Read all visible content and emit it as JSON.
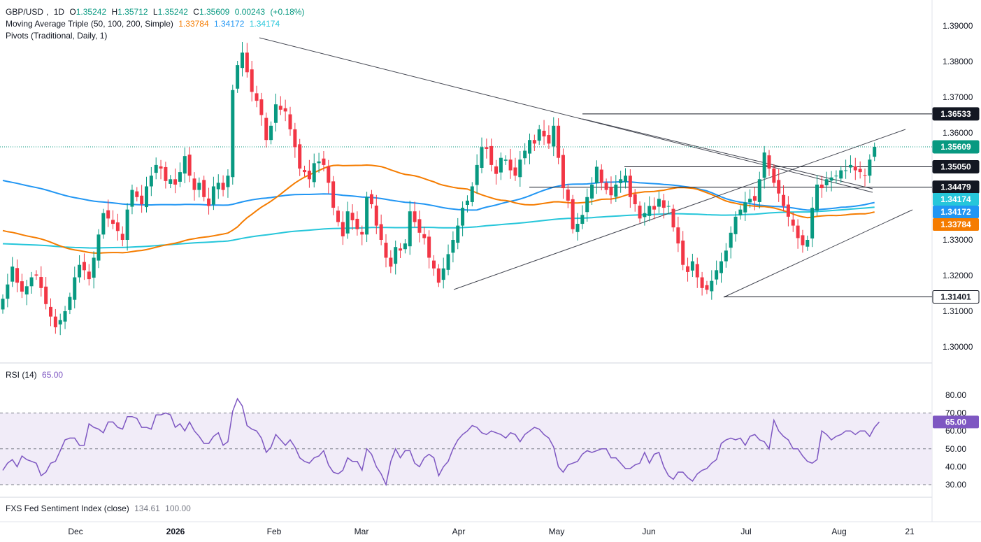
{
  "header": {
    "symbol": "GBP/USD",
    "interval": "1D",
    "o_label": "O",
    "o": "1.35242",
    "h_label": "H",
    "h": "1.35712",
    "l_label": "L",
    "l": "1.35242",
    "c_label": "C",
    "c": "1.35609",
    "change": "0.00243",
    "change_pct": "(+0.18%)"
  },
  "ma_legend": {
    "label": "Moving Average Triple (50, 100, 200, Simple)",
    "ma50": "1.33784",
    "ma100": "1.34172",
    "ma200": "1.34174"
  },
  "pivots_legend": {
    "label": "Pivots (Traditional, Daily, 1)"
  },
  "rsi_legend": {
    "label": "RSI (14)",
    "value": "65.00"
  },
  "fxs_legend": {
    "label": "FXS Fed Sentiment Index (close)",
    "value1": "134.61",
    "value2": "100.00"
  },
  "colors": {
    "up": "#089981",
    "down": "#f23645",
    "ma50": "#f57c00",
    "ma100": "#2196f3",
    "ma200": "#26c6da",
    "rsi": "#7e57c2",
    "rsi_band": "#ede7f6"
  },
  "chart_data": [
    {
      "type": "candlestick",
      "title": "GBP/USD 1D",
      "x_ticks": [
        "Dec",
        "2026",
        "Feb",
        "Mar",
        "Apr",
        "May",
        "Jun",
        "Jul",
        "Aug",
        "21"
      ],
      "y_ticks": [
        "1.39000",
        "1.38000",
        "1.37000",
        "1.36000",
        "1.35000",
        "1.34000",
        "1.33000",
        "1.32000",
        "1.31000",
        "1.30000"
      ],
      "ylim": [
        1.2965,
        1.3935
      ],
      "price_labels": {
        "pivot_high": "1.36533",
        "last": "1.35609",
        "pivot_mid": "1.35050",
        "pivot_low2": "1.34479",
        "ma200": "1.34174",
        "ma100": "1.34172",
        "ma50": "1.33784",
        "pivot_low": "1.31401"
      },
      "horizontal_levels": [
        1.36533,
        1.3505,
        1.34479,
        1.31401
      ],
      "series_close": [
        1.3135,
        1.3175,
        1.3225,
        1.318,
        1.3155,
        1.317,
        1.3195,
        1.32,
        1.3165,
        1.312,
        1.3085,
        1.3055,
        1.3075,
        1.31,
        1.314,
        1.3195,
        1.323,
        1.3215,
        1.319,
        1.325,
        1.3315,
        1.3375,
        1.336,
        1.3345,
        1.3325,
        1.33,
        1.3385,
        1.344,
        1.342,
        1.34,
        1.345,
        1.348,
        1.351,
        1.35,
        1.3465,
        1.347,
        1.3455,
        1.349,
        1.3535,
        1.348,
        1.344,
        1.346,
        1.342,
        1.3395,
        1.345,
        1.346,
        1.344,
        1.348,
        1.372,
        1.379,
        1.3825,
        1.377,
        1.3715,
        1.369,
        1.365,
        1.358,
        1.362,
        1.368,
        1.3665,
        1.366,
        1.361,
        1.356,
        1.35,
        1.349,
        1.347,
        1.3515,
        1.352,
        1.351,
        1.346,
        1.339,
        1.335,
        1.331,
        1.338,
        1.3355,
        1.333,
        1.3315,
        1.342,
        1.34,
        1.334,
        1.33,
        1.325,
        1.3225,
        1.328,
        1.327,
        1.329,
        1.338,
        1.335,
        1.332,
        1.3305,
        1.325,
        1.322,
        1.318,
        1.322,
        1.326,
        1.33,
        1.334,
        1.339,
        1.341,
        1.345,
        1.351,
        1.356,
        1.3555,
        1.351,
        1.3485,
        1.353,
        1.3525,
        1.3495,
        1.348,
        1.3525,
        1.355,
        1.358,
        1.357,
        1.361,
        1.359,
        1.357,
        1.362,
        1.353,
        1.3445,
        1.341,
        1.333,
        1.3345,
        1.337,
        1.342,
        1.3455,
        1.3505,
        1.346,
        1.344,
        1.3425,
        1.3455,
        1.347,
        1.348,
        1.342,
        1.34,
        1.336,
        1.3375,
        1.3395,
        1.3385,
        1.3415,
        1.339,
        1.3395,
        1.3335,
        1.329,
        1.323,
        1.321,
        1.324,
        1.3195,
        1.3165,
        1.316,
        1.3185,
        1.3215,
        1.324,
        1.327,
        1.332,
        1.3365,
        1.3385,
        1.3405,
        1.3415,
        1.341,
        1.347,
        1.3545,
        1.35,
        1.346,
        1.343,
        1.3395,
        1.3365,
        1.334,
        1.3305,
        1.3285,
        1.33,
        1.339,
        1.3455,
        1.3445,
        1.347,
        1.3475,
        1.348,
        1.3495,
        1.3495,
        1.351,
        1.3495,
        1.349,
        1.348,
        1.3525,
        1.35609
      ]
    },
    {
      "type": "line",
      "title": "RSI (14)",
      "y_ticks": [
        "80.00",
        "70.00",
        "60.00",
        "50.00",
        "40.00",
        "30.00"
      ],
      "ylim": [
        27.5,
        83.5
      ],
      "band": [
        30,
        70
      ],
      "last_label": "65.00",
      "values": [
        38,
        42,
        44,
        40,
        46,
        44,
        43,
        42,
        35,
        37,
        42,
        43,
        49,
        55,
        56,
        56,
        52,
        52,
        64,
        62,
        61,
        59,
        65,
        65,
        62,
        61,
        68,
        68,
        67,
        62,
        62,
        61,
        69,
        69,
        70,
        69,
        62,
        64,
        60,
        65,
        60,
        57,
        53,
        53,
        57,
        59,
        52,
        54,
        71,
        78,
        74,
        63,
        61,
        60,
        56,
        48,
        51,
        58,
        55,
        52,
        55,
        51,
        45,
        43,
        42,
        45,
        46,
        49,
        41,
        37,
        36,
        38,
        45,
        43,
        43,
        38,
        50,
        47,
        40,
        36,
        30,
        43,
        50,
        45,
        49,
        49,
        42,
        40,
        45,
        47,
        45,
        35,
        40,
        43,
        50,
        55,
        58,
        60,
        63,
        62,
        59,
        58,
        60,
        59,
        58,
        56,
        59,
        58,
        54,
        58,
        60,
        62,
        61,
        58,
        56,
        51,
        40,
        37,
        41,
        42,
        43,
        47,
        49,
        48,
        49,
        50,
        50,
        45,
        45,
        42,
        39,
        39,
        41,
        42,
        48,
        42,
        47,
        48,
        40,
        35,
        33,
        37,
        37,
        34,
        32,
        36,
        38,
        39,
        42,
        44,
        53,
        55,
        56,
        55,
        56,
        52,
        57,
        58,
        55,
        54,
        50,
        66,
        60,
        57,
        55,
        50,
        50,
        46,
        43,
        42,
        44,
        60,
        58,
        55,
        57,
        58,
        60,
        60,
        58,
        60,
        60,
        57,
        62,
        65
      ]
    }
  ]
}
